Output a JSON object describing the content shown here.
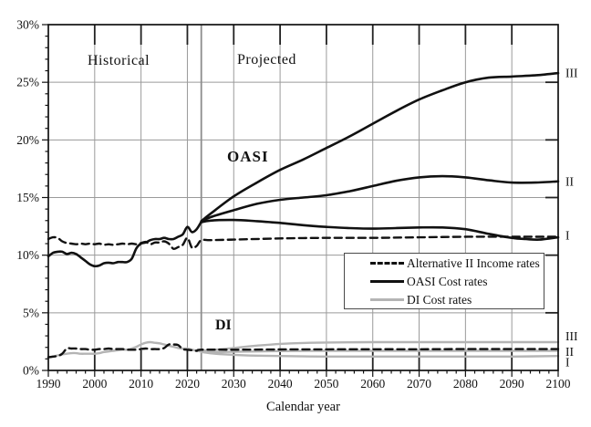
{
  "figure_title": "",
  "chart_data": {
    "type": "line",
    "title": "",
    "xlabel": "Calendar year",
    "ylabel": "",
    "xlim": [
      1990,
      2100
    ],
    "ylim": [
      0,
      30
    ],
    "xticks": [
      1990,
      2000,
      2010,
      2020,
      2030,
      2040,
      2050,
      2060,
      2070,
      2080,
      2090,
      2100
    ],
    "yticks": [
      0,
      5,
      10,
      15,
      20,
      25,
      30
    ],
    "ytick_labels": [
      "0%",
      "5%",
      "10%",
      "15%",
      "20%",
      "25%",
      "30%"
    ],
    "grid": true,
    "divider_year": 2023,
    "zone_labels": {
      "historical": "Historical",
      "projected": "Projected"
    },
    "group_labels": {
      "oasi": "OASI",
      "di": "DI"
    },
    "right_labels": [
      {
        "text": "III",
        "value": 25.8,
        "group": "oasi"
      },
      {
        "text": "II",
        "value": 16.4,
        "group": "oasi"
      },
      {
        "text": "I",
        "value": 11.7,
        "group": "oasi"
      },
      {
        "text": "III",
        "value": 2.95,
        "group": "di"
      },
      {
        "text": "II",
        "value": 1.62,
        "group": "di"
      },
      {
        "text": "I",
        "value": 0.72,
        "group": "di"
      }
    ],
    "legend": {
      "position": "center-right",
      "items": [
        {
          "label": "Alternative II Income rates",
          "style": "dashed",
          "color": "#111111"
        },
        {
          "label": "OASI Cost rates",
          "style": "solid",
          "color": "#111111"
        },
        {
          "label": "DI Cost rates",
          "style": "solid",
          "color": "#b4b4b4"
        }
      ]
    },
    "colors": {
      "black_line": "#111111",
      "gray_line": "#b4b4b4",
      "grid": "#9a9a9a",
      "divider": "#8d8d8d"
    },
    "series": [
      {
        "name": "OASI income rate (Alternative II)",
        "style": "dashed",
        "color": "#111111",
        "width": 2.4,
        "points": [
          [
            1990,
            11.4
          ],
          [
            1991,
            11.55
          ],
          [
            1992,
            11.5
          ],
          [
            1993,
            11.2
          ],
          [
            1994,
            11.05
          ],
          [
            1995,
            11.0
          ],
          [
            1996,
            10.95
          ],
          [
            1997,
            11.0
          ],
          [
            1998,
            10.95
          ],
          [
            1999,
            11.0
          ],
          [
            2000,
            10.95
          ],
          [
            2001,
            11.0
          ],
          [
            2002,
            10.9
          ],
          [
            2003,
            10.95
          ],
          [
            2004,
            10.9
          ],
          [
            2005,
            10.95
          ],
          [
            2006,
            11.0
          ],
          [
            2007,
            10.95
          ],
          [
            2008,
            11.0
          ],
          [
            2009,
            10.95
          ],
          [
            2010,
            11.05
          ],
          [
            2011,
            11.15
          ],
          [
            2012,
            10.95
          ],
          [
            2013,
            11.1
          ],
          [
            2014,
            11.1
          ],
          [
            2015,
            11.2
          ],
          [
            2016,
            11.0
          ],
          [
            2017,
            10.55
          ],
          [
            2018,
            10.7
          ],
          [
            2019,
            10.9
          ],
          [
            2020,
            11.5
          ],
          [
            2021,
            10.65
          ],
          [
            2022,
            10.8
          ],
          [
            2023,
            11.3
          ],
          [
            2025,
            11.3
          ],
          [
            2030,
            11.35
          ],
          [
            2040,
            11.45
          ],
          [
            2050,
            11.5
          ],
          [
            2060,
            11.5
          ],
          [
            2070,
            11.55
          ],
          [
            2080,
            11.6
          ],
          [
            2090,
            11.6
          ],
          [
            2100,
            11.6
          ]
        ]
      },
      {
        "name": "DI income rate (Alternative II)",
        "style": "dashed",
        "color": "#111111",
        "width": 2.4,
        "points": [
          [
            1990,
            1.15
          ],
          [
            1991,
            1.2
          ],
          [
            1992,
            1.25
          ],
          [
            1993,
            1.45
          ],
          [
            1994,
            1.9
          ],
          [
            1995,
            1.9
          ],
          [
            1996,
            1.9
          ],
          [
            1997,
            1.85
          ],
          [
            1998,
            1.85
          ],
          [
            1999,
            1.8
          ],
          [
            2000,
            1.8
          ],
          [
            2001,
            1.85
          ],
          [
            2002,
            1.85
          ],
          [
            2003,
            1.9
          ],
          [
            2004,
            1.85
          ],
          [
            2005,
            1.85
          ],
          [
            2006,
            1.85
          ],
          [
            2007,
            1.8
          ],
          [
            2008,
            1.8
          ],
          [
            2009,
            1.8
          ],
          [
            2010,
            1.85
          ],
          [
            2011,
            1.9
          ],
          [
            2012,
            1.85
          ],
          [
            2013,
            1.85
          ],
          [
            2014,
            1.85
          ],
          [
            2015,
            1.95
          ],
          [
            2016,
            2.25
          ],
          [
            2017,
            2.25
          ],
          [
            2018,
            2.2
          ],
          [
            2019,
            1.85
          ],
          [
            2020,
            1.8
          ],
          [
            2021,
            1.75
          ],
          [
            2022,
            1.7
          ],
          [
            2023,
            1.8
          ],
          [
            2030,
            1.8
          ],
          [
            2040,
            1.82
          ],
          [
            2050,
            1.83
          ],
          [
            2060,
            1.84
          ],
          [
            2070,
            1.84
          ],
          [
            2080,
            1.85
          ],
          [
            2090,
            1.85
          ],
          [
            2100,
            1.85
          ]
        ]
      },
      {
        "name": "OASI cost rate (historical)",
        "style": "solid",
        "color": "#111111",
        "width": 2.6,
        "points": [
          [
            1990,
            9.9
          ],
          [
            1991,
            10.2
          ],
          [
            1992,
            10.3
          ],
          [
            1993,
            10.3
          ],
          [
            1994,
            10.1
          ],
          [
            1995,
            10.2
          ],
          [
            1996,
            10.1
          ],
          [
            1997,
            9.8
          ],
          [
            1998,
            9.5
          ],
          [
            1999,
            9.2
          ],
          [
            2000,
            9.05
          ],
          [
            2001,
            9.1
          ],
          [
            2002,
            9.3
          ],
          [
            2003,
            9.35
          ],
          [
            2004,
            9.3
          ],
          [
            2005,
            9.4
          ],
          [
            2006,
            9.4
          ],
          [
            2007,
            9.4
          ],
          [
            2008,
            9.7
          ],
          [
            2009,
            10.6
          ],
          [
            2010,
            11.0
          ],
          [
            2011,
            11.1
          ],
          [
            2012,
            11.3
          ],
          [
            2013,
            11.4
          ],
          [
            2014,
            11.4
          ],
          [
            2015,
            11.5
          ],
          [
            2016,
            11.4
          ],
          [
            2017,
            11.4
          ],
          [
            2018,
            11.6
          ],
          [
            2019,
            11.8
          ],
          [
            2020,
            12.45
          ],
          [
            2021,
            12.0
          ],
          [
            2022,
            12.25
          ],
          [
            2023,
            12.9
          ]
        ]
      },
      {
        "name": "OASI cost rate Alternative I",
        "style": "solid",
        "color": "#111111",
        "width": 2.6,
        "points": [
          [
            2023,
            12.85
          ],
          [
            2025,
            13.0
          ],
          [
            2030,
            13.05
          ],
          [
            2035,
            12.95
          ],
          [
            2040,
            12.8
          ],
          [
            2045,
            12.6
          ],
          [
            2050,
            12.45
          ],
          [
            2055,
            12.35
          ],
          [
            2060,
            12.3
          ],
          [
            2065,
            12.35
          ],
          [
            2070,
            12.4
          ],
          [
            2075,
            12.4
          ],
          [
            2080,
            12.25
          ],
          [
            2085,
            11.85
          ],
          [
            2090,
            11.5
          ],
          [
            2093,
            11.4
          ],
          [
            2096,
            11.35
          ],
          [
            2100,
            11.55
          ]
        ]
      },
      {
        "name": "OASI cost rate Alternative II",
        "style": "solid",
        "color": "#111111",
        "width": 2.6,
        "points": [
          [
            2023,
            12.9
          ],
          [
            2025,
            13.3
          ],
          [
            2030,
            13.9
          ],
          [
            2035,
            14.45
          ],
          [
            2040,
            14.8
          ],
          [
            2045,
            15.0
          ],
          [
            2050,
            15.2
          ],
          [
            2055,
            15.55
          ],
          [
            2060,
            16.0
          ],
          [
            2065,
            16.45
          ],
          [
            2070,
            16.75
          ],
          [
            2075,
            16.85
          ],
          [
            2080,
            16.75
          ],
          [
            2085,
            16.5
          ],
          [
            2090,
            16.3
          ],
          [
            2095,
            16.3
          ],
          [
            2100,
            16.4
          ]
        ]
      },
      {
        "name": "OASI cost rate Alternative III",
        "style": "solid",
        "color": "#111111",
        "width": 2.6,
        "points": [
          [
            2023,
            12.95
          ],
          [
            2025,
            13.6
          ],
          [
            2030,
            15.1
          ],
          [
            2035,
            16.3
          ],
          [
            2040,
            17.4
          ],
          [
            2045,
            18.3
          ],
          [
            2050,
            19.3
          ],
          [
            2055,
            20.3
          ],
          [
            2060,
            21.4
          ],
          [
            2065,
            22.5
          ],
          [
            2070,
            23.5
          ],
          [
            2075,
            24.3
          ],
          [
            2080,
            25.0
          ],
          [
            2085,
            25.4
          ],
          [
            2090,
            25.5
          ],
          [
            2095,
            25.6
          ],
          [
            2100,
            25.8
          ]
        ]
      },
      {
        "name": "DI cost rate (historical)",
        "style": "solid",
        "color": "#b4b4b4",
        "width": 2.4,
        "points": [
          [
            1990,
            1.1
          ],
          [
            1991,
            1.2
          ],
          [
            1992,
            1.3
          ],
          [
            1993,
            1.4
          ],
          [
            1994,
            1.45
          ],
          [
            1995,
            1.5
          ],
          [
            1996,
            1.5
          ],
          [
            1997,
            1.45
          ],
          [
            1998,
            1.45
          ],
          [
            1999,
            1.45
          ],
          [
            2000,
            1.45
          ],
          [
            2001,
            1.5
          ],
          [
            2002,
            1.6
          ],
          [
            2003,
            1.65
          ],
          [
            2004,
            1.7
          ],
          [
            2005,
            1.75
          ],
          [
            2006,
            1.8
          ],
          [
            2007,
            1.8
          ],
          [
            2008,
            1.9
          ],
          [
            2009,
            2.05
          ],
          [
            2010,
            2.25
          ],
          [
            2011,
            2.4
          ],
          [
            2012,
            2.45
          ],
          [
            2013,
            2.4
          ],
          [
            2014,
            2.35
          ],
          [
            2015,
            2.25
          ],
          [
            2016,
            2.15
          ],
          [
            2017,
            2.05
          ],
          [
            2018,
            1.95
          ],
          [
            2019,
            1.9
          ],
          [
            2020,
            1.9
          ],
          [
            2021,
            1.8
          ],
          [
            2022,
            1.7
          ],
          [
            2023,
            1.65
          ]
        ]
      },
      {
        "name": "DI cost rate Alternative I",
        "style": "solid",
        "color": "#b4b4b4",
        "width": 2.4,
        "points": [
          [
            2023,
            1.6
          ],
          [
            2026,
            1.45
          ],
          [
            2030,
            1.35
          ],
          [
            2035,
            1.28
          ],
          [
            2040,
            1.25
          ],
          [
            2050,
            1.2
          ],
          [
            2060,
            1.2
          ],
          [
            2070,
            1.2
          ],
          [
            2080,
            1.2
          ],
          [
            2090,
            1.2
          ],
          [
            2100,
            1.25
          ]
        ]
      },
      {
        "name": "DI cost rate Alternative II",
        "style": "solid",
        "color": "#b4b4b4",
        "width": 2.4,
        "points": [
          [
            2023,
            1.65
          ],
          [
            2026,
            1.6
          ],
          [
            2030,
            1.62
          ],
          [
            2035,
            1.65
          ],
          [
            2040,
            1.68
          ],
          [
            2050,
            1.7
          ],
          [
            2060,
            1.7
          ],
          [
            2070,
            1.7
          ],
          [
            2080,
            1.7
          ],
          [
            2090,
            1.7
          ],
          [
            2100,
            1.7
          ]
        ]
      },
      {
        "name": "DI cost rate Alternative III",
        "style": "solid",
        "color": "#b4b4b4",
        "width": 2.4,
        "points": [
          [
            2023,
            1.7
          ],
          [
            2026,
            1.8
          ],
          [
            2030,
            1.95
          ],
          [
            2035,
            2.15
          ],
          [
            2040,
            2.3
          ],
          [
            2045,
            2.38
          ],
          [
            2050,
            2.42
          ],
          [
            2060,
            2.45
          ],
          [
            2070,
            2.45
          ],
          [
            2080,
            2.45
          ],
          [
            2090,
            2.45
          ],
          [
            2100,
            2.45
          ]
        ]
      }
    ]
  }
}
